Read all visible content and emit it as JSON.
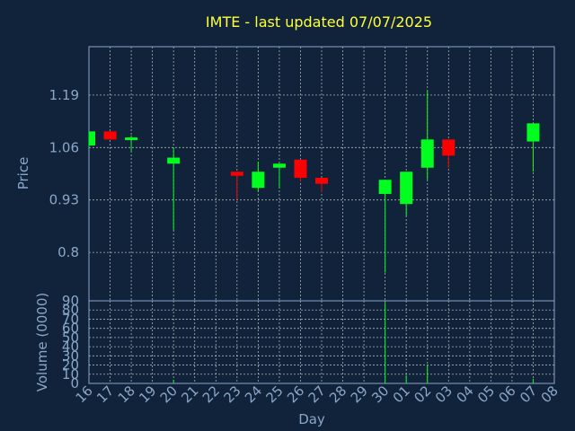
{
  "chart_data": [
    {
      "type": "candlestick",
      "title": "IMTE - last updated 07/07/2025",
      "xlabel": "Day",
      "ylabel": "Price",
      "x_ticks": [
        "16",
        "17",
        "18",
        "19",
        "20",
        "21",
        "22",
        "23",
        "24",
        "25",
        "26",
        "27",
        "28",
        "29",
        "30",
        "01",
        "02",
        "03",
        "04",
        "05",
        "06",
        "07",
        "08"
      ],
      "y_ticks": [
        "1.19",
        "1.06",
        "0.93",
        "0.8"
      ],
      "ylim": [
        0.68,
        1.31
      ],
      "grid": true,
      "colors": {
        "up": "#00ff1e",
        "down": "#ff0000",
        "wick_up": "#00ff1e",
        "wick_down": "#ff0000",
        "grid": "#c8c8c8",
        "axes": "#8aa7c9",
        "background": "#10233a",
        "title": "#ffff3a"
      },
      "series": [
        {
          "day": "16",
          "open": 1.065,
          "high": 1.1,
          "low": 1.06,
          "close": 1.1
        },
        {
          "day": "17",
          "open": 1.1,
          "high": 1.1,
          "low": 1.08,
          "close": 1.08
        },
        {
          "day": "18",
          "open": 1.08,
          "high": 1.09,
          "low": 1.05,
          "close": 1.085
        },
        {
          "day": "20",
          "open": 1.02,
          "high": 1.06,
          "low": 0.855,
          "close": 1.035
        },
        {
          "day": "23",
          "open": 1.0,
          "high": 1.0,
          "low": 0.93,
          "close": 0.99
        },
        {
          "day": "24",
          "open": 0.96,
          "high": 1.025,
          "low": 0.95,
          "close": 1.0
        },
        {
          "day": "25",
          "open": 1.01,
          "high": 1.02,
          "low": 0.96,
          "close": 1.02
        },
        {
          "day": "26",
          "open": 1.03,
          "high": 1.03,
          "low": 0.975,
          "close": 0.985
        },
        {
          "day": "27",
          "open": 0.985,
          "high": 0.985,
          "low": 0.95,
          "close": 0.97
        },
        {
          "day": "30",
          "open": 0.945,
          "high": 0.98,
          "low": 0.75,
          "close": 0.98
        },
        {
          "day": "01",
          "open": 0.92,
          "high": 1.0,
          "low": 0.89,
          "close": 1.0
        },
        {
          "day": "02",
          "open": 1.01,
          "high": 1.2,
          "low": 0.98,
          "close": 1.08
        },
        {
          "day": "03",
          "open": 1.08,
          "high": 1.08,
          "low": 1.01,
          "close": 1.04
        },
        {
          "day": "07",
          "open": 1.075,
          "high": 1.12,
          "low": 1.0,
          "close": 1.12
        }
      ]
    },
    {
      "type": "bar",
      "ylabel": "Volume (0000)",
      "y_ticks": [
        "0",
        "10",
        "20",
        "30",
        "40",
        "50",
        "60",
        "70",
        "80",
        "90"
      ],
      "ylim": [
        0,
        90
      ],
      "categories": [
        "16",
        "17",
        "18",
        "20",
        "23",
        "24",
        "25",
        "26",
        "27",
        "30",
        "01",
        "02",
        "03",
        "07"
      ],
      "values": [
        0.2,
        0.1,
        0.1,
        4,
        0.2,
        0.2,
        0.2,
        0.1,
        0.1,
        88,
        9,
        20,
        0.3,
        5
      ]
    }
  ]
}
